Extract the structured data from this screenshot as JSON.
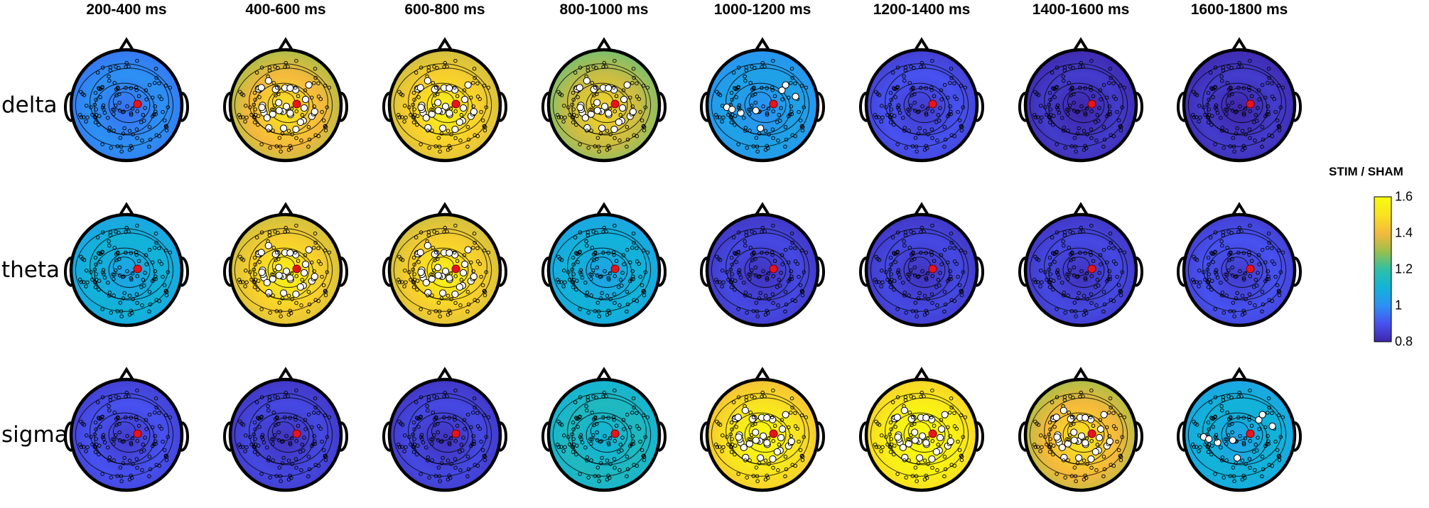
{
  "figure": {
    "time_windows": [
      "200-400 ms",
      "400-600 ms",
      "600-800 ms",
      "800-1000 ms",
      "1000-1200 ms",
      "1200-1400 ms",
      "1400-1600 ms",
      "1600-1800 ms"
    ],
    "bands": [
      "delta",
      "theta",
      "sigma"
    ],
    "colorbar": {
      "title": "STIM / SHAM",
      "ticks": [
        "1.6",
        "1.4",
        "1.2",
        "1",
        "0.8"
      ],
      "range": [
        0.8,
        1.6
      ],
      "colormap": [
        "#3e26a8",
        "#4752f0",
        "#2c91f3",
        "#12b3d8",
        "#2ec0a5",
        "#9cbf4b",
        "#f5b93c",
        "#f8e320",
        "#f9fb0e"
      ]
    },
    "topomaps": [
      {
        "band": "delta",
        "window": "200-400 ms",
        "value": 1.0,
        "significant": "none"
      },
      {
        "band": "delta",
        "window": "400-600 ms",
        "value": 1.4,
        "significant": "many"
      },
      {
        "band": "delta",
        "window": "600-800 ms",
        "value": 1.45,
        "significant": "many"
      },
      {
        "band": "delta",
        "window": "800-1000 ms",
        "value": 1.35,
        "significant": "many"
      },
      {
        "band": "delta",
        "window": "1000-1200 ms",
        "value": 1.05,
        "significant": "few"
      },
      {
        "band": "delta",
        "window": "1200-1400 ms",
        "value": 0.9,
        "significant": "none"
      },
      {
        "band": "delta",
        "window": "1400-1600 ms",
        "value": 0.85,
        "significant": "none"
      },
      {
        "band": "delta",
        "window": "1600-1800 ms",
        "value": 0.85,
        "significant": "none"
      },
      {
        "band": "theta",
        "window": "200-400 ms",
        "value": 1.1,
        "significant": "none"
      },
      {
        "band": "theta",
        "window": "400-600 ms",
        "value": 1.45,
        "significant": "many"
      },
      {
        "band": "theta",
        "window": "600-800 ms",
        "value": 1.45,
        "significant": "many"
      },
      {
        "band": "theta",
        "window": "800-1000 ms",
        "value": 1.1,
        "significant": "none"
      },
      {
        "band": "theta",
        "window": "1000-1200 ms",
        "value": 0.88,
        "significant": "none"
      },
      {
        "band": "theta",
        "window": "1200-1400 ms",
        "value": 0.88,
        "significant": "none"
      },
      {
        "band": "theta",
        "window": "1400-1600 ms",
        "value": 0.88,
        "significant": "none"
      },
      {
        "band": "theta",
        "window": "1600-1800 ms",
        "value": 0.9,
        "significant": "none"
      },
      {
        "band": "sigma",
        "window": "200-400 ms",
        "value": 0.9,
        "significant": "none"
      },
      {
        "band": "sigma",
        "window": "400-600 ms",
        "value": 0.88,
        "significant": "none"
      },
      {
        "band": "sigma",
        "window": "600-800 ms",
        "value": 0.88,
        "significant": "none"
      },
      {
        "band": "sigma",
        "window": "800-1000 ms",
        "value": 1.15,
        "significant": "none"
      },
      {
        "band": "sigma",
        "window": "1000-1200 ms",
        "value": 1.5,
        "significant": "many"
      },
      {
        "band": "sigma",
        "window": "1200-1400 ms",
        "value": 1.55,
        "significant": "many"
      },
      {
        "band": "sigma",
        "window": "1400-1600 ms",
        "value": 1.4,
        "significant": "many"
      },
      {
        "band": "sigma",
        "window": "1600-1800 ms",
        "value": 1.1,
        "significant": "few"
      }
    ]
  }
}
